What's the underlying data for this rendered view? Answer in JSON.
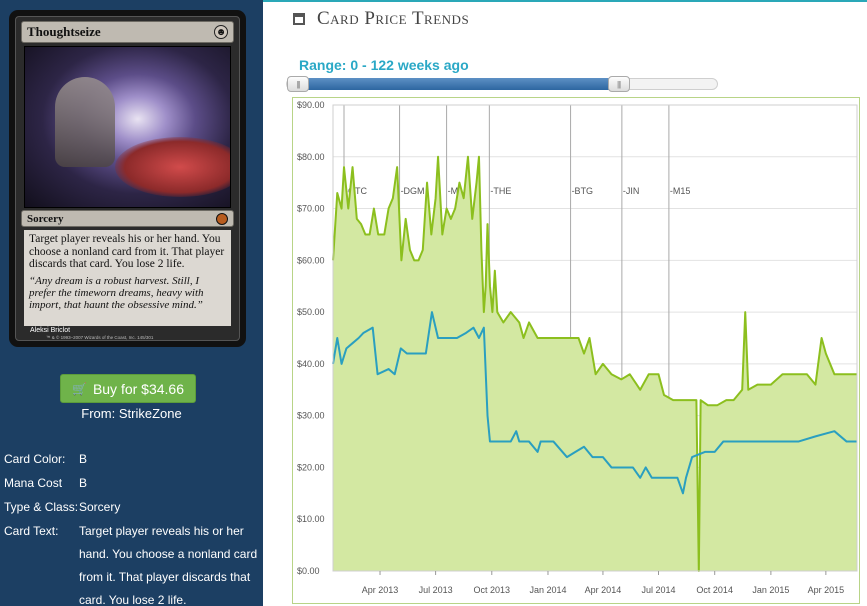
{
  "card": {
    "name": "Thoughtseize",
    "mana_symbol": "☻",
    "type_line": "Sorcery",
    "rules_text": "Target player reveals his or her hand. You choose a nonland card from it. That player discards that card. You lose 2 life.",
    "flavor_text": "“Any dream is a robust harvest. Still, I prefer the timeworn dreams, heavy with import, that haunt the obsessive mind.”",
    "artist": "Aleksi Briclot",
    "copyright": "™ & © 1993–2007 Wizards of the Coast, Inc. 145/301"
  },
  "buy": {
    "icon": "cart-icon",
    "label": "Buy for $34.66",
    "from": "From: StrikeZone"
  },
  "info": [
    {
      "label": "Card Color:",
      "value": "B"
    },
    {
      "label": "Mana Cost",
      "value": "B"
    },
    {
      "label": "Type & Class:",
      "value": "Sorcery"
    },
    {
      "label": "Card Text:",
      "value": "Target player reveals his or her hand. You choose a nonland card from it. That player discards that card. You lose 2 life."
    }
  ],
  "panel": {
    "title": "Card Price Trends",
    "title_icon": "calendar-icon",
    "range_label": "Range: 0 - 122 weeks ago",
    "slider": {
      "min": 0,
      "max": 156,
      "low": 0,
      "high": 122
    }
  },
  "colors": {
    "sidebar": "#1c3f63",
    "accent": "#2aa8c6",
    "green_line": "#8cbf1e",
    "green_fill": "#d3e8a2",
    "blue_line": "#2a9fc0",
    "buy_button": "#6fb34a"
  },
  "chart_data": {
    "type": "line",
    "title": "",
    "ylim": [
      0,
      90
    ],
    "y_ticks": [
      "$0.00",
      "$10.00",
      "$20.00",
      "$30.00",
      "$40.00",
      "$50.00",
      "$60.00",
      "$70.00",
      "$80.00",
      "$90.00"
    ],
    "x_range": [
      "2013-01-14",
      "2015-05-22"
    ],
    "x_ticks": [
      {
        "date": "2013-04-01",
        "label": "Apr 2013"
      },
      {
        "date": "2013-07-01",
        "label": "Jul 2013"
      },
      {
        "date": "2013-10-01",
        "label": "Oct 2013"
      },
      {
        "date": "2014-01-01",
        "label": "Jan 2014"
      },
      {
        "date": "2014-04-01",
        "label": "Apr 2014"
      },
      {
        "date": "2014-07-01",
        "label": "Jul 2014"
      },
      {
        "date": "2014-10-01",
        "label": "Oct 2014"
      },
      {
        "date": "2015-01-01",
        "label": "Jan 2015"
      },
      {
        "date": "2015-04-01",
        "label": "Apr 2015"
      }
    ],
    "set_markers": [
      {
        "date": "2013-02-01",
        "label": "GTC"
      },
      {
        "date": "2013-05-03",
        "label": "DGM"
      },
      {
        "date": "2013-07-19",
        "label": "M14"
      },
      {
        "date": "2013-09-27",
        "label": "THE"
      },
      {
        "date": "2014-02-07",
        "label": "BTG"
      },
      {
        "date": "2014-05-02",
        "label": "JIN"
      },
      {
        "date": "2014-07-18",
        "label": "M15"
      }
    ],
    "series": [
      {
        "name": "",
        "color": "#8cbf1e",
        "fill": "#d3e8a2",
        "points": [
          [
            "2013-01-14",
            60
          ],
          [
            "2013-01-21",
            73
          ],
          [
            "2013-01-28",
            70
          ],
          [
            "2013-02-01",
            78
          ],
          [
            "2013-02-08",
            70
          ],
          [
            "2013-02-15",
            78
          ],
          [
            "2013-02-22",
            68
          ],
          [
            "2013-03-01",
            67
          ],
          [
            "2013-03-08",
            65
          ],
          [
            "2013-03-15",
            65
          ],
          [
            "2013-03-22",
            70
          ],
          [
            "2013-03-29",
            65
          ],
          [
            "2013-04-08",
            65
          ],
          [
            "2013-04-15",
            70
          ],
          [
            "2013-04-22",
            72
          ],
          [
            "2013-04-29",
            78
          ],
          [
            "2013-05-06",
            60
          ],
          [
            "2013-05-13",
            68
          ],
          [
            "2013-05-20",
            62
          ],
          [
            "2013-05-27",
            60
          ],
          [
            "2013-06-03",
            60
          ],
          [
            "2013-06-10",
            62
          ],
          [
            "2013-06-17",
            75
          ],
          [
            "2013-06-24",
            65
          ],
          [
            "2013-07-01",
            72
          ],
          [
            "2013-07-05",
            80
          ],
          [
            "2013-07-12",
            65
          ],
          [
            "2013-07-19",
            70
          ],
          [
            "2013-07-26",
            68
          ],
          [
            "2013-08-02",
            70
          ],
          [
            "2013-08-09",
            75
          ],
          [
            "2013-08-16",
            72
          ],
          [
            "2013-08-23",
            80
          ],
          [
            "2013-08-30",
            68
          ],
          [
            "2013-09-06",
            75
          ],
          [
            "2013-09-10",
            80
          ],
          [
            "2013-09-14",
            62
          ],
          [
            "2013-09-18",
            50
          ],
          [
            "2013-09-21",
            55
          ],
          [
            "2013-09-24",
            67
          ],
          [
            "2013-09-28",
            55
          ],
          [
            "2013-10-02",
            50
          ],
          [
            "2013-10-06",
            58
          ],
          [
            "2013-10-10",
            50
          ],
          [
            "2013-10-20",
            48
          ],
          [
            "2013-11-01",
            50
          ],
          [
            "2013-11-15",
            48
          ],
          [
            "2013-11-22",
            45
          ],
          [
            "2013-12-01",
            48
          ],
          [
            "2013-12-15",
            45
          ],
          [
            "2014-01-01",
            45
          ],
          [
            "2014-01-20",
            45
          ],
          [
            "2014-02-07",
            45
          ],
          [
            "2014-02-20",
            45
          ],
          [
            "2014-03-01",
            42
          ],
          [
            "2014-03-10",
            45
          ],
          [
            "2014-03-20",
            38
          ],
          [
            "2014-04-01",
            40
          ],
          [
            "2014-04-15",
            38
          ],
          [
            "2014-05-01",
            37
          ],
          [
            "2014-05-15",
            38
          ],
          [
            "2014-06-01",
            35
          ],
          [
            "2014-06-15",
            38
          ],
          [
            "2014-07-01",
            38
          ],
          [
            "2014-07-10",
            34
          ],
          [
            "2014-07-25",
            33
          ],
          [
            "2014-08-10",
            33
          ],
          [
            "2014-08-25",
            33
          ],
          [
            "2014-09-01",
            33
          ],
          [
            "2014-09-05",
            0
          ],
          [
            "2014-09-08",
            33
          ],
          [
            "2014-09-20",
            32
          ],
          [
            "2014-10-05",
            32
          ],
          [
            "2014-10-20",
            33
          ],
          [
            "2014-11-01",
            33
          ],
          [
            "2014-11-15",
            35
          ],
          [
            "2014-11-20",
            50
          ],
          [
            "2014-11-25",
            35
          ],
          [
            "2014-12-10",
            36
          ],
          [
            "2015-01-01",
            36
          ],
          [
            "2015-01-20",
            38
          ],
          [
            "2015-02-10",
            38
          ],
          [
            "2015-03-01",
            38
          ],
          [
            "2015-03-15",
            36
          ],
          [
            "2015-03-25",
            45
          ],
          [
            "2015-04-01",
            42
          ],
          [
            "2015-04-15",
            38
          ],
          [
            "2015-05-01",
            38
          ],
          [
            "2015-05-22",
            38
          ]
        ]
      },
      {
        "name": "",
        "color": "#2a9fc0",
        "fill": null,
        "points": [
          [
            "2013-01-14",
            40
          ],
          [
            "2013-01-21",
            45
          ],
          [
            "2013-01-28",
            40
          ],
          [
            "2013-02-05",
            43
          ],
          [
            "2013-02-15",
            44
          ],
          [
            "2013-02-25",
            45
          ],
          [
            "2013-03-05",
            46
          ],
          [
            "2013-03-20",
            47
          ],
          [
            "2013-03-28",
            38
          ],
          [
            "2013-04-15",
            39
          ],
          [
            "2013-04-25",
            38
          ],
          [
            "2013-05-05",
            43
          ],
          [
            "2013-05-15",
            42
          ],
          [
            "2013-06-01",
            42
          ],
          [
            "2013-06-15",
            42
          ],
          [
            "2013-06-25",
            50
          ],
          [
            "2013-07-05",
            45
          ],
          [
            "2013-07-20",
            45
          ],
          [
            "2013-08-05",
            45
          ],
          [
            "2013-08-20",
            46
          ],
          [
            "2013-09-01",
            47
          ],
          [
            "2013-09-10",
            45
          ],
          [
            "2013-09-18",
            47
          ],
          [
            "2013-09-24",
            30
          ],
          [
            "2013-09-28",
            25
          ],
          [
            "2013-10-10",
            25
          ],
          [
            "2013-11-01",
            25
          ],
          [
            "2013-11-10",
            27
          ],
          [
            "2013-11-15",
            25
          ],
          [
            "2013-12-01",
            25
          ],
          [
            "2013-12-15",
            23
          ],
          [
            "2013-12-20",
            25
          ],
          [
            "2014-01-10",
            25
          ],
          [
            "2014-02-01",
            22
          ],
          [
            "2014-02-15",
            23
          ],
          [
            "2014-03-01",
            24
          ],
          [
            "2014-03-15",
            22
          ],
          [
            "2014-04-01",
            22
          ],
          [
            "2014-04-15",
            20
          ],
          [
            "2014-05-01",
            20
          ],
          [
            "2014-05-20",
            20
          ],
          [
            "2014-06-01",
            18
          ],
          [
            "2014-06-10",
            20
          ],
          [
            "2014-06-20",
            18
          ],
          [
            "2014-07-10",
            18
          ],
          [
            "2014-08-01",
            18
          ],
          [
            "2014-08-10",
            15
          ],
          [
            "2014-08-15",
            18
          ],
          [
            "2014-08-25",
            22
          ],
          [
            "2014-09-15",
            23
          ],
          [
            "2014-10-01",
            23
          ],
          [
            "2014-10-15",
            25
          ],
          [
            "2014-11-01",
            25
          ],
          [
            "2014-11-15",
            25
          ],
          [
            "2014-12-15",
            25
          ],
          [
            "2015-01-15",
            25
          ],
          [
            "2015-02-15",
            25
          ],
          [
            "2015-03-15",
            26
          ],
          [
            "2015-04-15",
            27
          ],
          [
            "2015-05-05",
            25
          ],
          [
            "2015-05-22",
            25
          ]
        ]
      }
    ]
  }
}
